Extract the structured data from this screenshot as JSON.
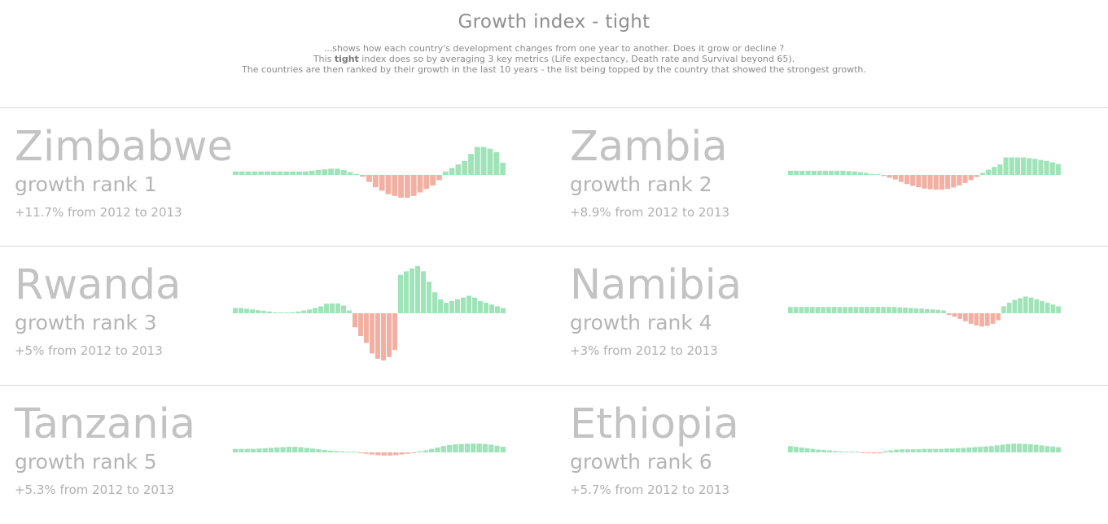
{
  "header": {
    "title": "Growth index - tight",
    "line1": "...shows how each country's development changes from one year to another. Does it grow or decline ?",
    "line2_pre": "This ",
    "line2_bold": "tight",
    "line2_post": " index does so by averaging 3 key metrics (Life expectancy, Death rate and Survival beyond 65).",
    "line3": "The countries are then ranked by their growth in the last 10 years - the list being topped by the country that showed the strongest growth."
  },
  "colors": {
    "positive": "#9fe3b8",
    "negative": "#f2b0a3"
  },
  "cards": [
    {
      "country": "Zimbabwe",
      "rank": "growth rank 1",
      "growth": "+11.7% from 2012 to 2013"
    },
    {
      "country": "Zambia",
      "rank": "growth rank 2",
      "growth": "+8.9% from 2012 to 2013"
    },
    {
      "country": "Rwanda",
      "rank": "growth rank 3",
      "growth": "+5% from 2012 to 2013"
    },
    {
      "country": "Namibia",
      "rank": "growth rank 4",
      "growth": "+3% from 2012 to 2013"
    },
    {
      "country": "Tanzania",
      "rank": "growth rank 5",
      "growth": "+5.3% from 2012 to 2013"
    },
    {
      "country": "Ethiopia",
      "rank": "growth rank 6",
      "growth": "+5.7% from 2012 to 2013"
    }
  ],
  "chart_data": [
    {
      "type": "bar",
      "title": "",
      "series": [
        {
          "name": "Zimbabwe",
          "values": [
            1,
            1,
            1,
            1,
            1,
            1,
            1,
            1,
            1,
            1,
            1,
            1,
            1.2,
            1.4,
            1.6,
            1.8,
            1.8,
            1.4,
            0.8,
            0.3,
            -0.5,
            -2,
            -3.5,
            -4.5,
            -5.5,
            -6,
            -6.5,
            -6.5,
            -6,
            -5,
            -4,
            -3,
            -1.5,
            1,
            2,
            3,
            4,
            6,
            8,
            8,
            7.5,
            6.5,
            3.5
          ]
        }
      ]
    },
    {
      "type": "bar",
      "title": "",
      "series": [
        {
          "name": "Zambia",
          "values": [
            1.2,
            1.2,
            1.2,
            1.2,
            1.2,
            1.2,
            1.2,
            1.2,
            1.2,
            1.2,
            1.1,
            1,
            0.8,
            0.6,
            0.3,
            0.1,
            -0.3,
            -0.8,
            -1.3,
            -2,
            -2.6,
            -3.1,
            -3.5,
            -3.9,
            -4.1,
            -4.2,
            -4.2,
            -4,
            -3.6,
            -3,
            -2.3,
            -1.5,
            -0.6,
            0.6,
            1.5,
            2.3,
            3,
            5,
            5,
            5,
            5,
            4.8,
            4.6,
            4.3,
            4,
            3.6,
            3.1
          ]
        }
      ]
    },
    {
      "type": "bar",
      "title": "",
      "series": [
        {
          "name": "Rwanda",
          "values": [
            1.5,
            1.5,
            1.3,
            1.1,
            0.9,
            0.7,
            0.5,
            0.3,
            0.2,
            0.2,
            0.3,
            0.5,
            0.8,
            1.1,
            1.5,
            2,
            2.7,
            2.8,
            2.8,
            2.2,
            0.8,
            -4,
            -6.5,
            -8.5,
            -11.5,
            -13,
            -13.5,
            -12.5,
            -10.5,
            11,
            12,
            12.8,
            13.5,
            12,
            9,
            6,
            4,
            3,
            3.5,
            4,
            4.5,
            5,
            4.5,
            3.5,
            3,
            2.5,
            2,
            1.5
          ]
        }
      ]
    },
    {
      "type": "bar",
      "title": "",
      "series": [
        {
          "name": "Namibia",
          "values": [
            1.8,
            1.8,
            1.8,
            1.8,
            1.8,
            1.8,
            1.8,
            1.8,
            1.8,
            1.8,
            1.8,
            1.8,
            1.8,
            1.8,
            1.8,
            1.8,
            1.8,
            1.8,
            1.8,
            1.8,
            1.7,
            1.6,
            1.5,
            1.4,
            1.3,
            1.2,
            1.1,
            1,
            0.8,
            -0.5,
            -1,
            -1.6,
            -2.3,
            -3,
            -3.5,
            -3.8,
            -3.6,
            -3,
            -2,
            2,
            3,
            3.8,
            4.3,
            4.8,
            4.5,
            4,
            3.5,
            3,
            2.5,
            2
          ]
        }
      ]
    },
    {
      "type": "bar",
      "title": "",
      "series": [
        {
          "name": "Tanzania",
          "values": [
            1,
            1,
            1,
            1,
            1.1,
            1.2,
            1.3,
            1.4,
            1.5,
            1.6,
            1.6,
            1.5,
            1.3,
            1.1,
            0.9,
            0.7,
            0.5,
            0.4,
            0.3,
            0.2,
            0.1,
            -0.2,
            -0.4,
            -0.6,
            -0.8,
            -0.9,
            -0.9,
            -0.8,
            -0.6,
            -0.4,
            -0.2,
            0.3,
            0.6,
            1,
            1.4,
            1.8,
            2.1,
            2.3,
            2.4,
            2.5,
            2.5,
            2.5,
            2.4,
            2.2,
            1.9,
            1.6
          ]
        }
      ]
    },
    {
      "type": "bar",
      "title": "",
      "series": [
        {
          "name": "Ethiopia",
          "values": [
            1.8,
            1.6,
            1.4,
            1.2,
            1,
            0.8,
            0.7,
            0.6,
            0.4,
            0.3,
            0.2,
            0.1,
            0.05,
            -0.05,
            -0.2,
            -0.3,
            -0.3,
            0.4,
            0.6,
            0.8,
            0.9,
            0.9,
            0.9,
            0.9,
            1,
            1,
            1,
            1,
            1.1,
            1.1,
            1.2,
            1.3,
            1.4,
            1.5,
            1.6,
            1.7,
            1.8,
            2,
            2.2,
            2.4,
            2.5,
            2.5,
            2.4,
            2.3,
            2.2,
            2,
            1.8,
            1.7,
            1.5
          ]
        }
      ]
    }
  ]
}
